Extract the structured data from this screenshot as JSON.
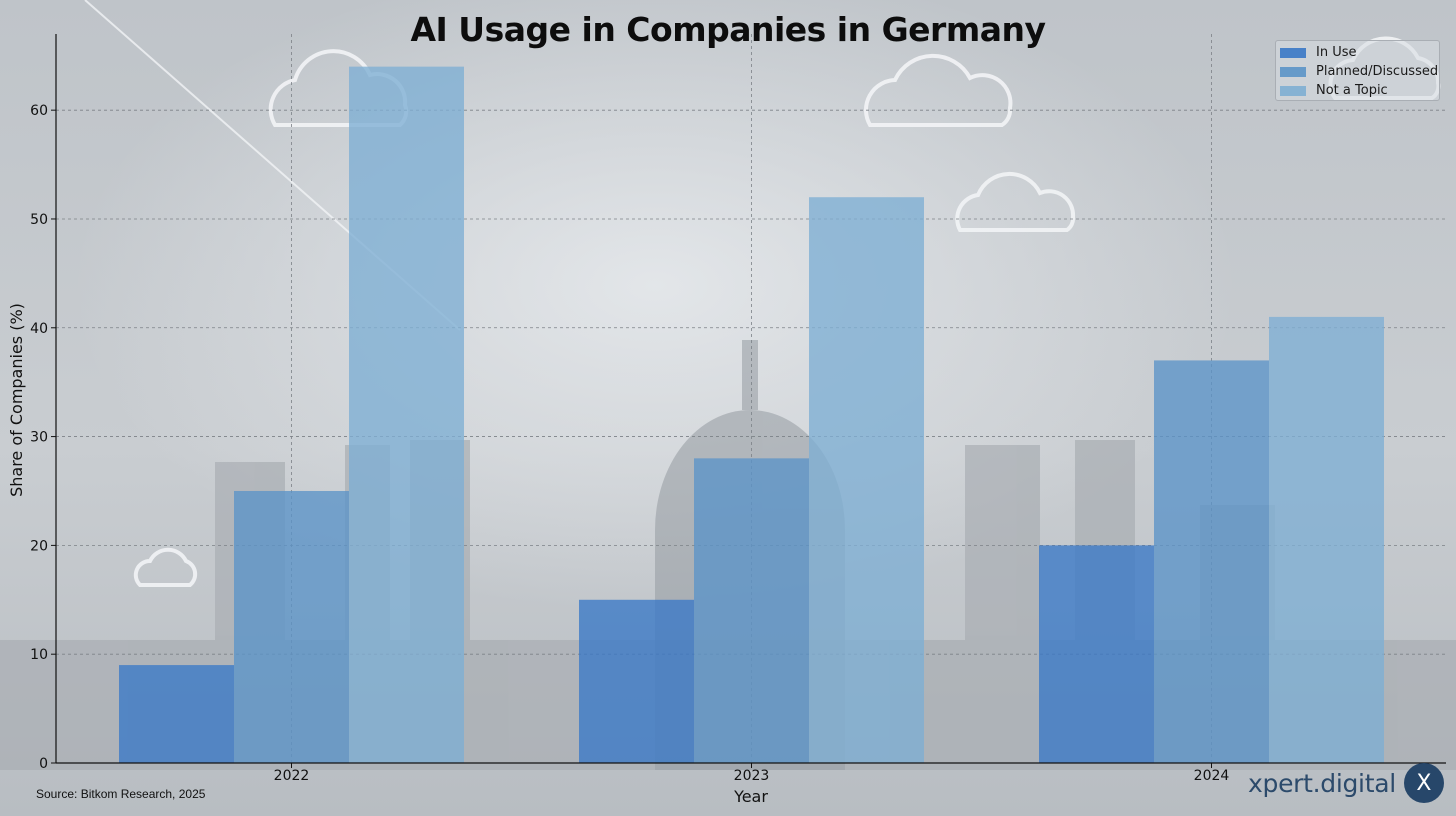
{
  "chart_data": {
    "type": "bar",
    "title": "AI Usage in Companies in Germany",
    "xlabel": "Year",
    "ylabel": "Share of Companies (%)",
    "categories": [
      "2022",
      "2023",
      "2024"
    ],
    "series": [
      {
        "name": "In Use",
        "values": [
          9,
          15,
          20
        ],
        "color": "#3a78c6"
      },
      {
        "name": "Planned/Discussed",
        "values": [
          25,
          28,
          37
        ],
        "color": "#5b93c8"
      },
      {
        "name": "Not a Topic",
        "values": [
          64,
          52,
          41
        ],
        "color": "#7eaed3"
      }
    ],
    "ylim": [
      0,
      67
    ],
    "yticks": [
      0,
      10,
      20,
      30,
      40,
      50,
      60
    ],
    "grid": true,
    "legend_position": "top-right"
  },
  "source_note": "Source: Bitkom Research, 2025",
  "logo": {
    "text": "xpert.digital",
    "badge": "X"
  }
}
